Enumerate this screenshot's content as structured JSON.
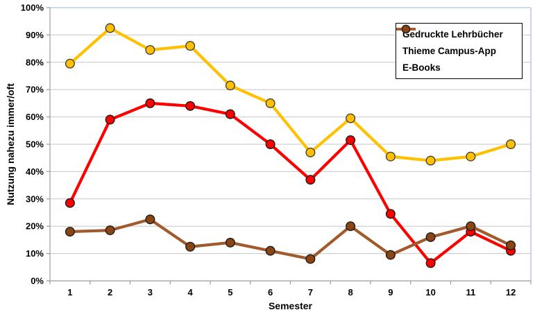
{
  "chart_data": {
    "type": "line",
    "x": [
      1,
      2,
      3,
      4,
      5,
      6,
      7,
      8,
      9,
      10,
      11,
      12
    ],
    "xlabel": "Semester",
    "ylabel": "Nutzung nahezu immer/oft",
    "ylim": [
      0,
      100
    ],
    "y_ticks": [
      "0%",
      "10%",
      "20%",
      "30%",
      "40%",
      "50%",
      "60%",
      "70%",
      "80%",
      "90%",
      "100%"
    ],
    "grid": true,
    "legend_position": "top-right",
    "series": [
      {
        "name": "Gedruckte Lehrbücher",
        "line_color": "#FFC000",
        "marker_fill": "#FFC000",
        "marker_stroke": "#404040",
        "values": [
          79.5,
          92.5,
          84.5,
          86,
          71.5,
          65,
          47,
          59.5,
          45.5,
          44,
          45.5,
          50
        ]
      },
      {
        "name": "Thieme Campus-App",
        "line_color": "#FF0000",
        "marker_fill": "#FF0000",
        "marker_stroke": "#1a1a1a",
        "values": [
          28.5,
          59,
          65,
          64,
          61,
          50,
          37,
          51.5,
          24.5,
          6.5,
          18,
          11
        ]
      },
      {
        "name": "E-Books",
        "line_color": "#A05A2C",
        "marker_fill": "#8B4513",
        "marker_stroke": "#1a1a1a",
        "values": [
          18,
          18.5,
          22.5,
          12.5,
          14,
          11,
          8,
          20,
          9.5,
          16,
          20,
          13
        ]
      }
    ],
    "style": {
      "gridline_color": "#C6C6C6",
      "axis_color": "#9B9B9B",
      "plot_border_color": "#B9CDE5",
      "text_color": "#000000",
      "background": "#FFFFFF"
    }
  }
}
